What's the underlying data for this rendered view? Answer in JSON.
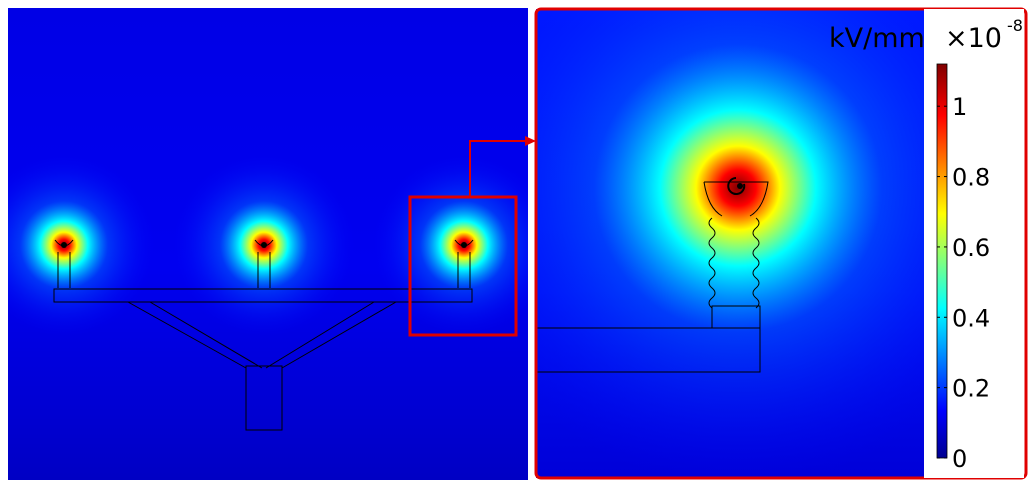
{
  "chart_data": {
    "type": "heatmap",
    "title": "",
    "colorbar": {
      "unit": "kV/mm",
      "multiplier": "×10",
      "exponent": "-8",
      "range": [
        0,
        1.12
      ],
      "ticks": [
        0,
        0.2,
        0.4,
        0.6,
        0.8,
        1
      ],
      "tick_labels": [
        "0",
        "0.2",
        "0.4",
        "0.6",
        "0.8",
        "1"
      ],
      "colormap": [
        "#00008f",
        "#0000ff",
        "#00ffff",
        "#ffff00",
        "#ff0000",
        "#800000"
      ]
    },
    "panels": [
      {
        "name": "full-view",
        "sources": 3,
        "peak_value": 1.1
      },
      {
        "name": "zoom-inset",
        "sources": 1,
        "peak_value": 1.1
      }
    ],
    "colors": {
      "highlight": "#e00000"
    }
  }
}
